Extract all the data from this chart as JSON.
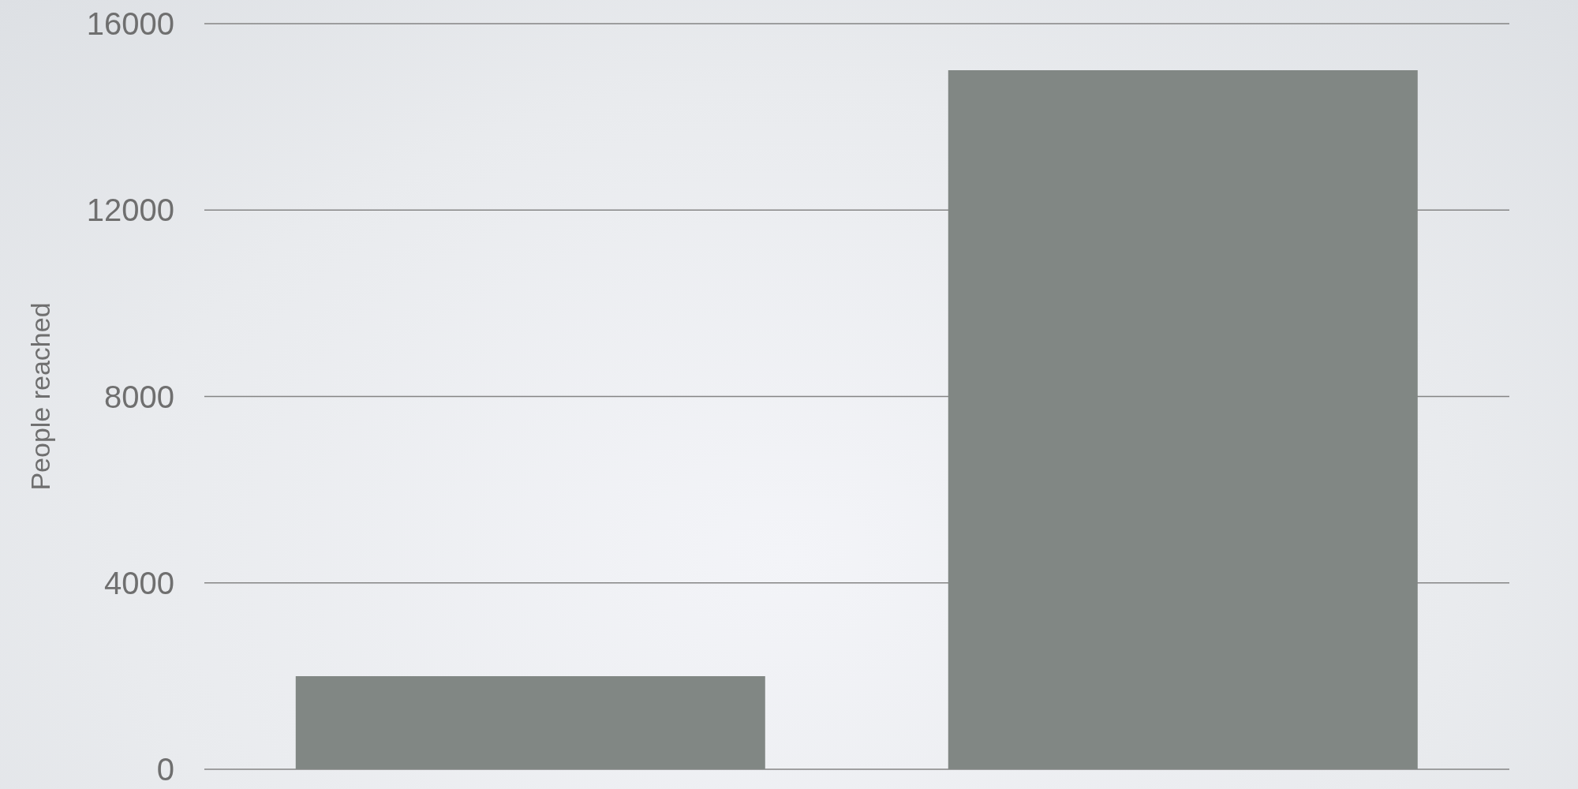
{
  "chart_data": {
    "type": "bar",
    "ylabel": "People reached",
    "categories": [
      null,
      null
    ],
    "values": [
      2000,
      15000
    ],
    "color": "#818784",
    "ylim": [
      0,
      16000
    ],
    "yticks": [
      0,
      4000,
      8000,
      12000,
      16000
    ],
    "grid": "y",
    "tick_labels": "y"
  }
}
